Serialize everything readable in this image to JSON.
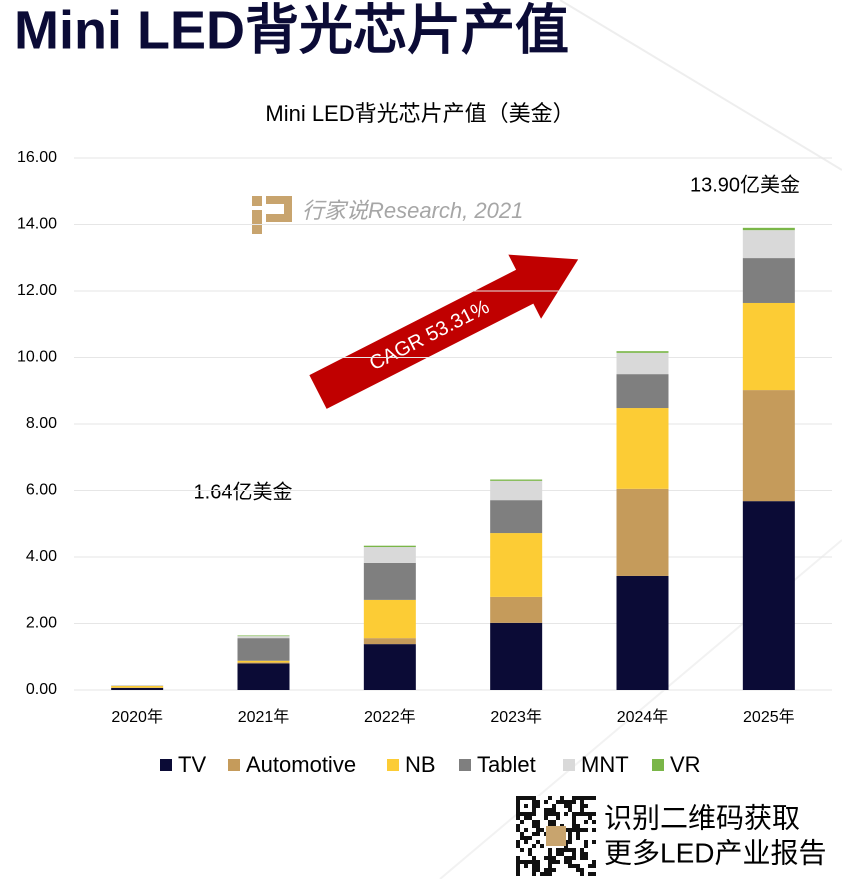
{
  "page_title": "Mini LED背光芯片产值",
  "chart_data": {
    "type": "stacked_bar",
    "title": "Mini LED背光芯片产值（美金）",
    "categories": [
      "2020年",
      "2021年",
      "2022年",
      "2023年",
      "2024年",
      "2025年"
    ],
    "series": [
      {
        "name": "TV",
        "color": "#0b0b36",
        "values": [
          0.06,
          0.8,
          1.38,
          2.02,
          3.43,
          5.68
        ]
      },
      {
        "name": "Automotive",
        "color": "#c59b5b",
        "values": [
          0.01,
          0.03,
          0.18,
          0.78,
          2.62,
          3.34
        ]
      },
      {
        "name": "NB",
        "color": "#fccc35",
        "values": [
          0.05,
          0.05,
          1.15,
          1.92,
          2.43,
          2.62
        ]
      },
      {
        "name": "Tablet",
        "color": "#7f7f7f",
        "values": [
          0.01,
          0.68,
          1.11,
          0.99,
          1.02,
          1.35
        ]
      },
      {
        "name": "MNT",
        "color": "#d9d9d9",
        "values": [
          0.01,
          0.06,
          0.48,
          0.58,
          0.64,
          0.84
        ]
      },
      {
        "name": "VR",
        "color": "#7ab648",
        "values": [
          0.0,
          0.02,
          0.04,
          0.04,
          0.05,
          0.07
        ]
      }
    ],
    "ylim": [
      0,
      16
    ],
    "yticks": [
      {
        "value": 0,
        "label": "0.00"
      },
      {
        "value": 2,
        "label": "2.00"
      },
      {
        "value": 4,
        "label": "4.00"
      },
      {
        "value": 6,
        "label": "6.00"
      },
      {
        "value": 8,
        "label": "8.00"
      },
      {
        "value": 10,
        "label": "10.00"
      },
      {
        "value": 12,
        "label": "12.00"
      },
      {
        "value": 14,
        "label": "14.00"
      },
      {
        "value": 16,
        "label": "16.00"
      }
    ],
    "grid": true,
    "legend": "bottom",
    "annotations": [
      "1.64亿美金",
      "13.90亿美金"
    ],
    "cagr_label": "CAGR 53.31%",
    "watermark": "行家说Research, 2021"
  },
  "footer": {
    "qr_text": [
      "识别二维码获取",
      "更多LED产业报告"
    ]
  }
}
